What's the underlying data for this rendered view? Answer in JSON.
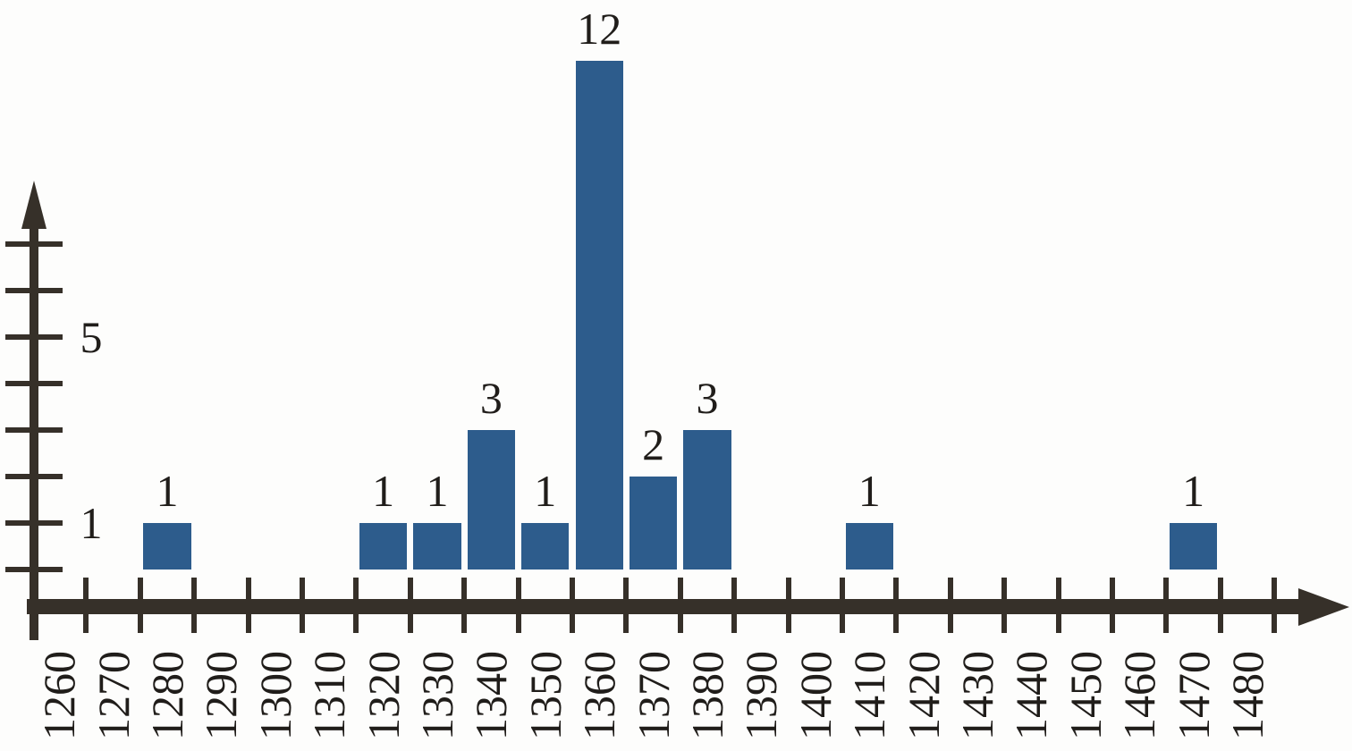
{
  "chart_data": {
    "type": "bar",
    "subtype": "frequency-histogram",
    "categories": [
      "1260",
      "1270",
      "1280",
      "1290",
      "1300",
      "1310",
      "1320",
      "1330",
      "1340",
      "1350",
      "1360",
      "1370",
      "1380",
      "1390",
      "1400",
      "1410",
      "1420",
      "1430",
      "1440",
      "1450",
      "1460",
      "1470",
      "1480"
    ],
    "values": [
      0,
      0,
      1,
      0,
      0,
      0,
      1,
      1,
      3,
      1,
      12,
      2,
      3,
      0,
      0,
      1,
      0,
      0,
      0,
      0,
      0,
      1,
      0
    ],
    "bar_value_labels": [
      "",
      "",
      "1",
      "",
      "",
      "",
      "1",
      "1",
      "3",
      "1",
      "12",
      "2",
      "3",
      "",
      "",
      "1",
      "",
      "",
      "",
      "",
      "",
      "1",
      ""
    ],
    "x_bin_width": 10,
    "x_range": [
      1260,
      1480
    ],
    "ylim": [
      0,
      12
    ],
    "y_axis": {
      "ticks_drawn": [
        0,
        1,
        2,
        3,
        4,
        5,
        6,
        7
      ],
      "labeled_ticks": [
        {
          "value": 1,
          "label": "1"
        },
        {
          "value": 5,
          "label": "5"
        }
      ]
    },
    "grid": false,
    "legend": false,
    "colors": {
      "bar": "#2d5c8c",
      "axis": "#363029",
      "text": "#201d1a",
      "background": "#fdfdfc"
    }
  }
}
